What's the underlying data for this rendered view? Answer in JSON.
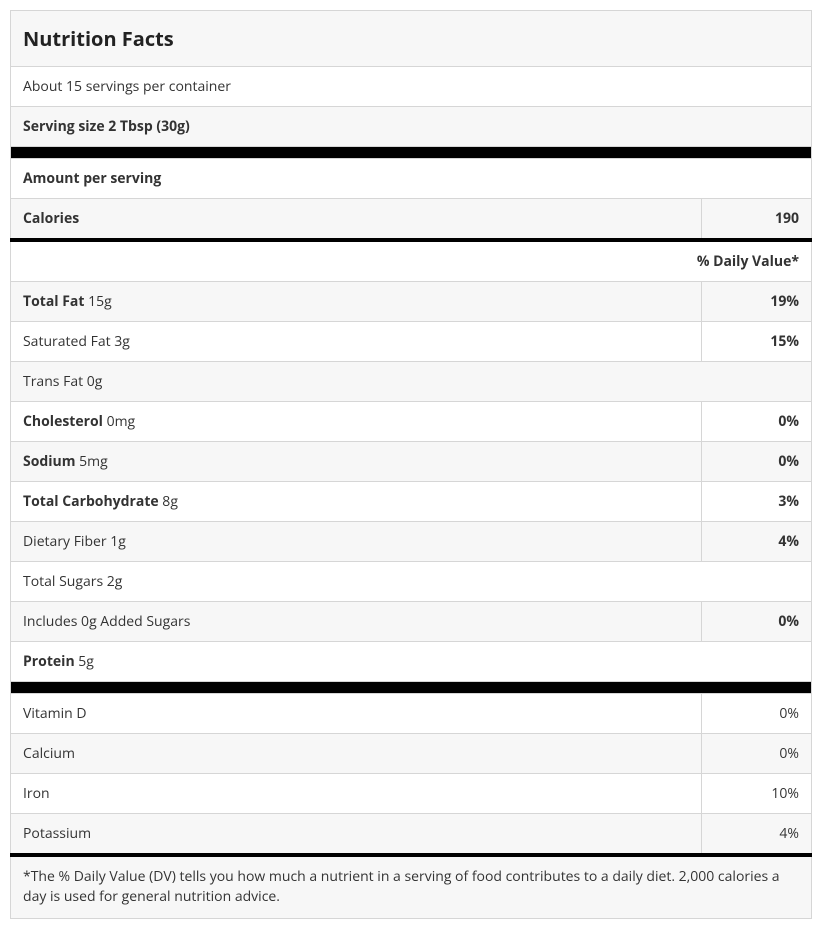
{
  "title": "Nutrition Facts",
  "servings_per_container": "About 15 servings per container",
  "serving_size": "Serving size 2 Tbsp (30g)",
  "amount_per_serving": "Amount per serving",
  "calories_label": "Calories",
  "calories_value": "190",
  "dv_header": "% Daily Value*",
  "nutrients": [
    {
      "label": "Total Fat",
      "amount": "15g",
      "dv": "19%",
      "bold": true
    },
    {
      "label": "Saturated Fat",
      "amount": "3g",
      "dv": "15%",
      "bold": false
    },
    {
      "label": "Trans Fat",
      "amount": "0g",
      "dv": "",
      "bold": false
    },
    {
      "label": "Cholesterol",
      "amount": "0mg",
      "dv": "0%",
      "bold": true
    },
    {
      "label": "Sodium",
      "amount": "5mg",
      "dv": "0%",
      "bold": true
    },
    {
      "label": "Total Carbohydrate",
      "amount": "8g",
      "dv": "3%",
      "bold": true
    },
    {
      "label": "Dietary Fiber",
      "amount": "1g",
      "dv": "4%",
      "bold": false
    },
    {
      "label": "Total Sugars",
      "amount": "2g",
      "dv": "",
      "bold": false
    },
    {
      "label": "Includes 0g Added Sugars",
      "amount": "",
      "dv": "0%",
      "bold": false
    },
    {
      "label": "Protein",
      "amount": "5g",
      "dv": "",
      "bold": true
    }
  ],
  "vitamins": [
    {
      "label": "Vitamin D",
      "dv": "0%"
    },
    {
      "label": "Calcium",
      "dv": "0%"
    },
    {
      "label": "Iron",
      "dv": "10%"
    },
    {
      "label": "Potassium",
      "dv": "4%"
    }
  ],
  "footnote": "*The % Daily Value (DV) tells you how much a nutrient in a serving of food contributes to a daily diet. 2,000 calories a day is used for general nutrition advice.",
  "colors": {
    "border": "#d6d6d6",
    "bg_alt": "#f7f7f7",
    "bg": "#ffffff",
    "divider": "#000000",
    "text": "#333333"
  }
}
